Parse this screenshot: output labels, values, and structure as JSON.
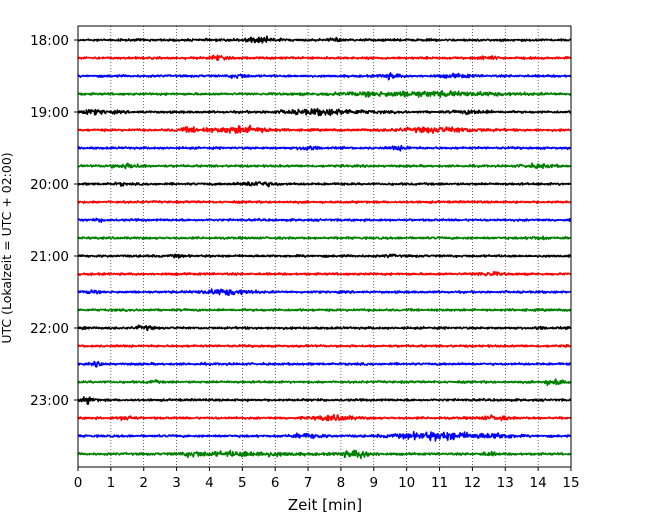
{
  "chart_data": {
    "type": "line",
    "subtype": "helicorder",
    "title": "",
    "xlabel": "Zeit  [min]",
    "ylabel": "UTC (Lokalzeit = UTC + 02:00)",
    "xlim": [
      0,
      15
    ],
    "x_ticks": [
      0,
      1,
      2,
      3,
      4,
      5,
      6,
      7,
      8,
      9,
      10,
      11,
      12,
      13,
      14,
      15
    ],
    "x_grid": true,
    "y_tick_labels": [
      "18:00",
      "19:00",
      "20:00",
      "21:00",
      "22:00",
      "23:00"
    ],
    "y_tick_trace_index": [
      0,
      4,
      8,
      12,
      16,
      20
    ],
    "trace_interval_min": 15,
    "trace_start": "18:00",
    "trace_count": 24,
    "trace_colors": [
      "#000000",
      "#ff0000",
      "#0000ff",
      "#008000"
    ],
    "traces": [
      {
        "start": "18:00",
        "color": "#000000",
        "bursts": [
          [
            5.5,
            1.0,
            3.5
          ],
          [
            7.8,
            0.3,
            2.5
          ]
        ]
      },
      {
        "start": "18:15",
        "color": "#ff0000",
        "bursts": [
          [
            4.2,
            0.5,
            3.0
          ],
          [
            12.5,
            0.6,
            1.8
          ]
        ]
      },
      {
        "start": "18:30",
        "color": "#0000ff",
        "bursts": [
          [
            4.9,
            0.5,
            2.5
          ],
          [
            9.5,
            0.6,
            3.0
          ],
          [
            11.5,
            1.0,
            1.8
          ]
        ]
      },
      {
        "start": "18:45",
        "color": "#008000",
        "bursts": [
          [
            10.5,
            5.0,
            3.0
          ]
        ]
      },
      {
        "start": "19:00",
        "color": "#000000",
        "bursts": [
          [
            0.3,
            1.5,
            2.5
          ],
          [
            7.5,
            2.5,
            3.5
          ],
          [
            12.0,
            1.0,
            2.0
          ]
        ]
      },
      {
        "start": "19:15",
        "color": "#ff0000",
        "bursts": [
          [
            5.0,
            1.5,
            4.5
          ],
          [
            3.5,
            1.0,
            2.5
          ],
          [
            11.0,
            2.5,
            3.0
          ]
        ]
      },
      {
        "start": "19:30",
        "color": "#0000ff",
        "bursts": [
          [
            7.0,
            0.5,
            3.0
          ],
          [
            9.8,
            0.6,
            2.0
          ]
        ]
      },
      {
        "start": "19:45",
        "color": "#008000",
        "bursts": [
          [
            1.5,
            1.0,
            2.5
          ],
          [
            14.0,
            1.0,
            2.0
          ]
        ]
      },
      {
        "start": "20:00",
        "color": "#000000",
        "bursts": [
          [
            5.5,
            1.0,
            3.0
          ],
          [
            1.3,
            0.3,
            1.5
          ]
        ]
      },
      {
        "start": "20:15",
        "color": "#ff0000",
        "bursts": []
      },
      {
        "start": "20:30",
        "color": "#0000ff",
        "bursts": [
          [
            0.7,
            0.3,
            1.5
          ]
        ]
      },
      {
        "start": "20:45",
        "color": "#008000",
        "bursts": [
          [
            14.0,
            0.5,
            1.5
          ]
        ]
      },
      {
        "start": "21:00",
        "color": "#000000",
        "bursts": [
          [
            3.0,
            0.3,
            1.5
          ],
          [
            9.5,
            0.3,
            1.5
          ]
        ]
      },
      {
        "start": "21:15",
        "color": "#ff0000",
        "bursts": [
          [
            12.5,
            0.8,
            2.0
          ]
        ]
      },
      {
        "start": "21:30",
        "color": "#0000ff",
        "bursts": [
          [
            4.5,
            1.5,
            3.5
          ],
          [
            0.4,
            0.3,
            2.0
          ]
        ]
      },
      {
        "start": "21:45",
        "color": "#008000",
        "bursts": []
      },
      {
        "start": "22:00",
        "color": "#000000",
        "bursts": [
          [
            2.0,
            0.5,
            2.5
          ],
          [
            0.2,
            0.2,
            1.5
          ],
          [
            14.0,
            0.3,
            1.5
          ]
        ]
      },
      {
        "start": "22:15",
        "color": "#ff0000",
        "bursts": []
      },
      {
        "start": "22:30",
        "color": "#0000ff",
        "bursts": [
          [
            0.6,
            0.3,
            2.5
          ]
        ]
      },
      {
        "start": "22:45",
        "color": "#008000",
        "bursts": [
          [
            14.5,
            0.6,
            4.0
          ],
          [
            2.3,
            0.3,
            1.5
          ]
        ]
      },
      {
        "start": "23:00",
        "color": "#000000",
        "bursts": [
          [
            0.3,
            0.4,
            4.0
          ]
        ]
      },
      {
        "start": "23:15",
        "color": "#ff0000",
        "bursts": [
          [
            1.5,
            0.5,
            2.5
          ],
          [
            7.8,
            1.2,
            3.0
          ],
          [
            12.7,
            0.8,
            2.5
          ]
        ]
      },
      {
        "start": "23:30",
        "color": "#0000ff",
        "bursts": [
          [
            7.0,
            1.0,
            2.5
          ],
          [
            11.0,
            2.5,
            5.0
          ],
          [
            12.8,
            1.0,
            2.5
          ]
        ]
      },
      {
        "start": "23:45",
        "color": "#008000",
        "bursts": [
          [
            5.0,
            3.0,
            3.0
          ],
          [
            8.5,
            1.0,
            4.5
          ],
          [
            3.5,
            0.5,
            2.5
          ],
          [
            12.5,
            0.5,
            2.0
          ]
        ]
      }
    ]
  }
}
